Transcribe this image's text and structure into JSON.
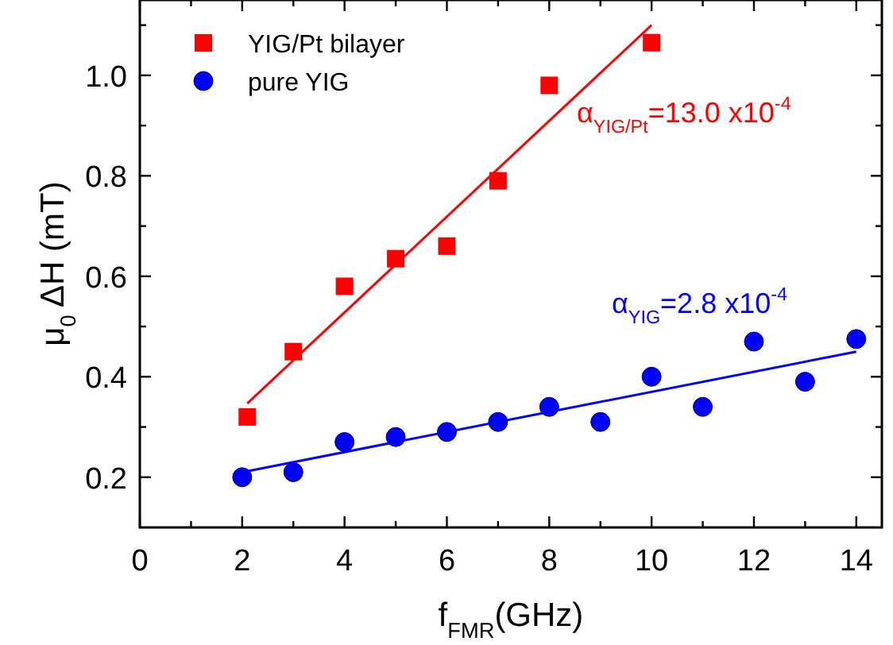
{
  "chart_data": {
    "type": "scatter",
    "xlabel": "f$_{FMR}$(GHz)",
    "ylabel": "μ$_{0}$ ΔH (mT)",
    "xlim": [
      0,
      14.5
    ],
    "ylim": [
      0.1,
      1.15
    ],
    "xticks": [
      0,
      {
        "value": 1,
        "label": null
      },
      2,
      {
        "value": 3,
        "label": null
      },
      4,
      {
        "value": 5,
        "label": null
      },
      6,
      {
        "value": 7,
        "label": null
      },
      8,
      {
        "value": 9,
        "label": null
      },
      10,
      {
        "value": 11,
        "label": null
      },
      12,
      {
        "value": 13,
        "label": null
      },
      14
    ],
    "yticks": [
      0.2,
      {
        "value": 0.3,
        "label": null
      },
      0.4,
      {
        "value": 0.5,
        "label": null
      },
      0.6,
      {
        "value": 0.7,
        "label": null
      },
      0.8,
      {
        "value": 0.9,
        "label": null
      },
      {
        "value": 1,
        "label": "1.0"
      },
      {
        "value": 1.1,
        "label": null
      }
    ],
    "legend": "top left",
    "series": [
      {
        "name": "YIG/Pt bilayer",
        "marker": "square",
        "color": "#ff0000",
        "x": [
          2.1,
          3,
          4,
          5,
          6,
          7,
          8,
          10
        ],
        "values": [
          0.32,
          0.45,
          0.58,
          0.635,
          0.66,
          0.79,
          0.98,
          1.065
        ]
      },
      {
        "name": "pure YIG",
        "marker": "circle",
        "color": "#0000ff",
        "x": [
          2,
          3,
          4,
          5,
          6,
          7,
          8,
          9,
          10,
          11,
          12,
          13,
          14
        ],
        "values": [
          0.2,
          0.21,
          0.27,
          0.28,
          0.29,
          0.31,
          0.34,
          0.31,
          0.4,
          0.34,
          0.47,
          0.39,
          0.475
        ]
      },
      {
        "type": "line",
        "color": "#ff0000",
        "x": [
          2.1,
          10
        ],
        "values": [
          0.347,
          1.1
        ]
      },
      {
        "type": "line",
        "color": "#0000ff",
        "x": [
          2,
          14
        ],
        "values": [
          0.21,
          0.45
        ]
      }
    ],
    "annotations": [
      "α$_{YIG/Pt}$=13.0 x10$^{-4}$",
      "α$_{YIG}$=2.8 x10$^{-4}$"
    ]
  }
}
